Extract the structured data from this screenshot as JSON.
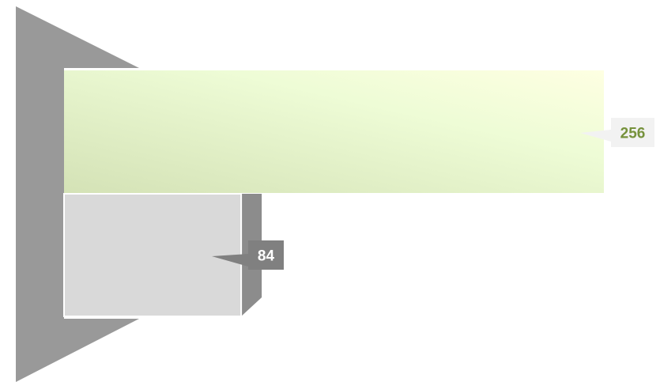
{
  "chart_data": {
    "type": "bar",
    "orientation": "horizontal",
    "title": "",
    "xlabel": "",
    "ylabel": "",
    "categories": [
      "",
      ""
    ],
    "values": [
      256,
      84
    ],
    "xlim": [
      0,
      300
    ],
    "grid": false,
    "legend": "none",
    "data_labels": [
      "256",
      "84"
    ],
    "colors": {
      "bar_top_start": "#d4e2b6",
      "bar_top_end": "#feffe2",
      "bar_bottom": "#d9d9d9",
      "wall": "#999999",
      "label_bar_top_bg": "#f2f2f2",
      "label_bar_top_text": "#76923c",
      "label_bar_bottom_bg": "#808080",
      "label_bar_bottom_text": "#ffffff"
    }
  }
}
